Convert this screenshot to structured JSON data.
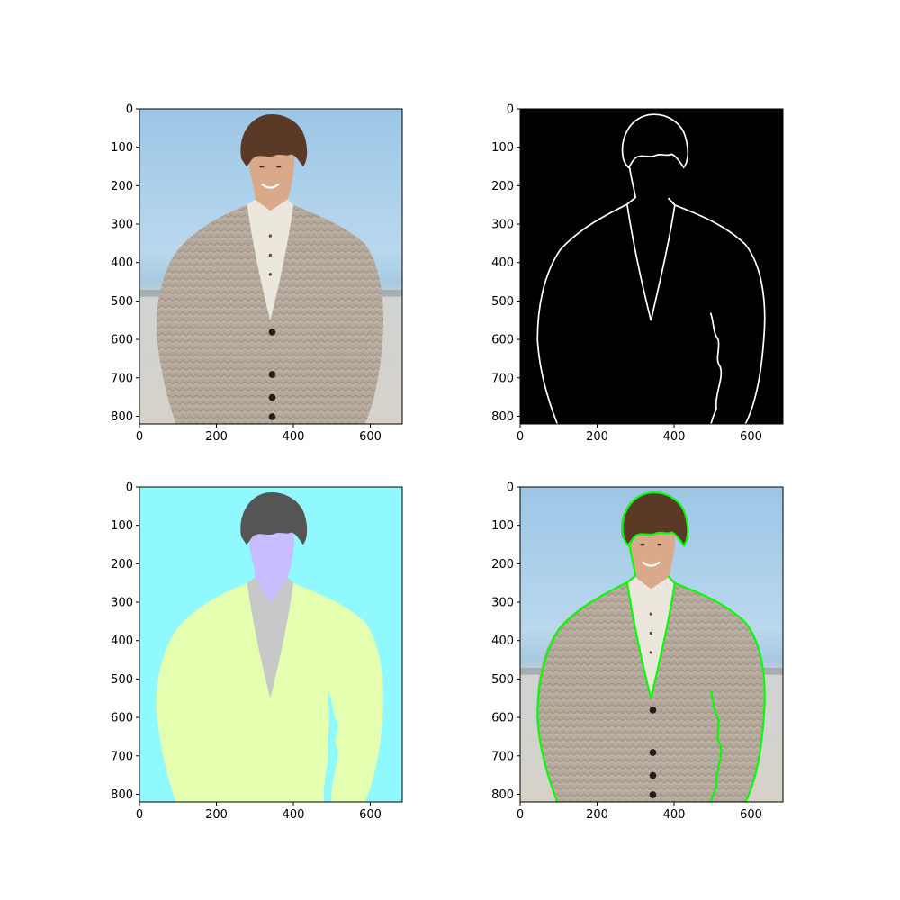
{
  "figure": {
    "panels": [
      {
        "id": "original-photo",
        "kind": "photo"
      },
      {
        "id": "edge-map",
        "kind": "edges"
      },
      {
        "id": "segmentation-map",
        "kind": "segmentation"
      },
      {
        "id": "contour-overlay",
        "kind": "overlay"
      }
    ],
    "x_ticks": [
      "0",
      "200",
      "400",
      "600"
    ],
    "y_ticks": [
      "0",
      "100",
      "200",
      "300",
      "400",
      "500",
      "600",
      "700",
      "800"
    ],
    "image_size": {
      "width": 683,
      "height": 820
    }
  },
  "colors": {
    "sky": "#a9cfe8",
    "sand": "#d8d4ca",
    "cardigan": "#b6aa9d",
    "hair": "#5a3a26",
    "skin": "#d9a98a",
    "shirt": "#ece7dd",
    "button": "#2b1c1c",
    "edge_line": "#ffffff",
    "edge_bg": "#000000",
    "seg_background": "#8ff9ff",
    "seg_hair": "#555555",
    "seg_face": "#c9bcff",
    "seg_shirt": "#c8c8c8",
    "seg_cardigan": "#e4ffb0",
    "contour": "#00ff00"
  }
}
